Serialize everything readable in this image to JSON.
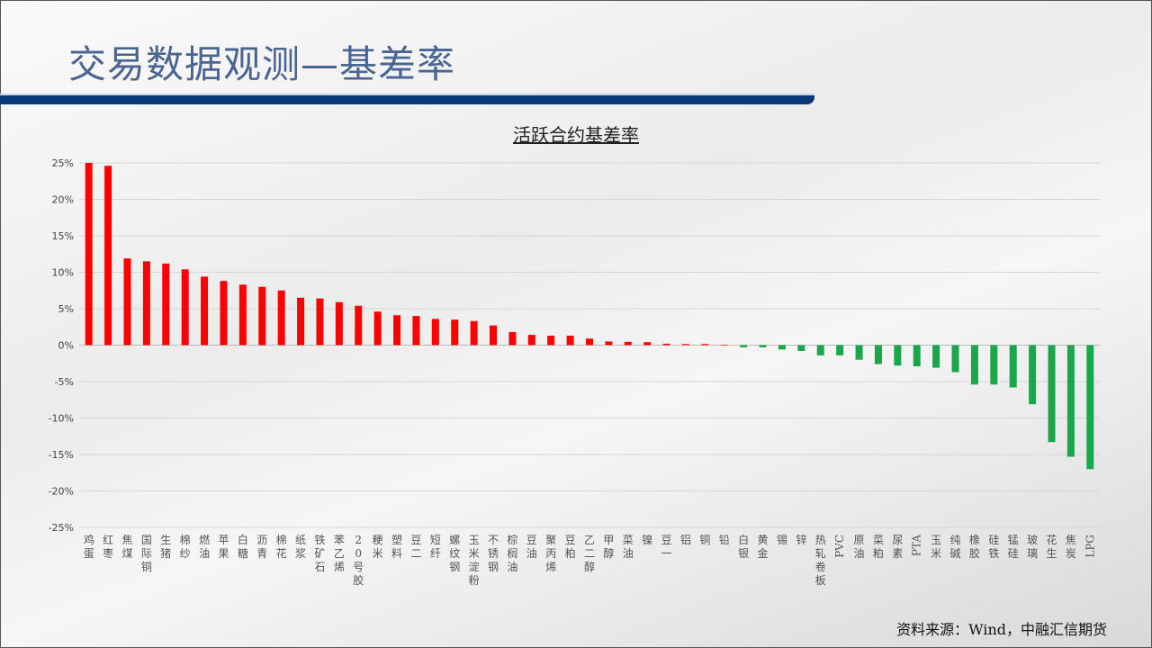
{
  "header": {
    "title": "交易数据观测—基差率"
  },
  "footer": {
    "source": "资料来源：Wind，中融汇信期货"
  },
  "chart_data": {
    "type": "bar",
    "title": "活跃合约基差率",
    "xlabel": "",
    "ylabel": "",
    "ylim": [
      -25,
      25
    ],
    "yticks": [
      25,
      20,
      15,
      10,
      5,
      0,
      -5,
      -10,
      -15,
      -20,
      -25
    ],
    "ytick_format": "percent",
    "grid": true,
    "colors": {
      "positive": "#ff0000",
      "negative": "#1aa64a"
    },
    "categories": [
      "鸡蛋",
      "红枣",
      "焦煤",
      "国际铜",
      "生猪",
      "棉纱",
      "燃油",
      "苹果",
      "白糖",
      "沥青",
      "棉花",
      "纸浆",
      "铁矿石",
      "苯乙烯",
      "20号胶",
      "粳米",
      "塑料",
      "豆二",
      "短纤",
      "螺纹钢",
      "玉米淀粉",
      "不锈钢",
      "棕榈油",
      "豆油",
      "聚丙烯",
      "豆粕",
      "乙二醇",
      "甲醇",
      "菜油",
      "镍",
      "豆一",
      "铝",
      "铜",
      "铅",
      "白银",
      "黄金",
      "锡",
      "锌",
      "热轧卷板",
      "PVC",
      "原油",
      "菜粕",
      "尿素",
      "PTA",
      "玉米",
      "纯碱",
      "橡胶",
      "硅铁",
      "锰硅",
      "玻璃",
      "花生",
      "焦炭",
      "LPG"
    ],
    "values": [
      25.0,
      24.6,
      11.9,
      11.5,
      11.2,
      10.4,
      9.4,
      8.8,
      8.3,
      8.0,
      7.5,
      6.5,
      6.4,
      5.9,
      5.4,
      4.6,
      4.1,
      4.0,
      3.6,
      3.5,
      3.3,
      2.7,
      1.8,
      1.4,
      1.3,
      1.3,
      0.9,
      0.5,
      0.45,
      0.4,
      0.2,
      0.15,
      0.15,
      0.05,
      -0.3,
      -0.3,
      -0.6,
      -0.8,
      -1.4,
      -1.4,
      -2.0,
      -2.6,
      -2.8,
      -2.9,
      -3.1,
      -3.7,
      -5.4,
      -5.4,
      -5.8,
      -8.1,
      -13.3,
      -15.3,
      -17.0
    ]
  }
}
